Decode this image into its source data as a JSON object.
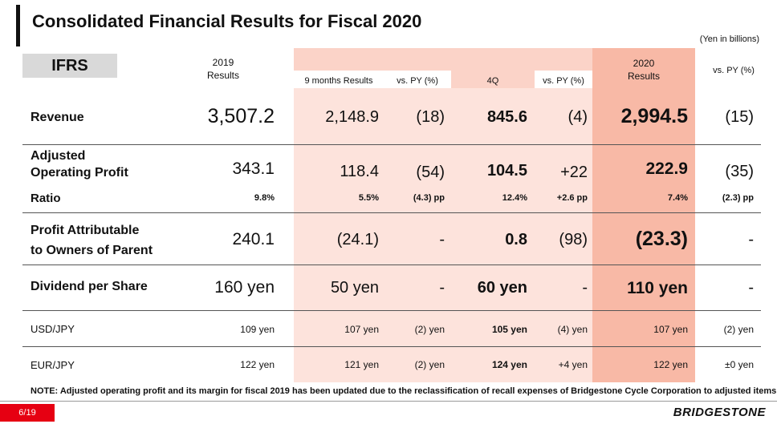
{
  "page": {
    "title": "Consolidated Financial Results for Fiscal 2020",
    "unit_note": "(Yen in billions)",
    "ifrs_label": "IFRS",
    "note": "NOTE: Adjusted operating profit and its margin for fiscal 2019 has been updated due to the reclassification of recall expenses of Bridgestone Cycle Corporation to adjusted items.",
    "page_number": "6/19",
    "logo_text": "BRIDGESTONE"
  },
  "headers": {
    "fy2019_line1": "2019",
    "fy2019_line2": "Results",
    "nine_months": "9 months Results",
    "vs_py_9m": "vs. PY (%)",
    "q4": "4Q",
    "vs_py_4q": "vs. PY (%)",
    "fy2020_line1": "2020",
    "fy2020_line2": "Results",
    "vs_py_fy": "vs. PY (%)"
  },
  "rows": {
    "revenue": {
      "label": "Revenue",
      "fy2019": "3,507.2",
      "m9": "2,148.9",
      "m9_vs": "(18)",
      "q4": "845.6",
      "q4_vs": "(4)",
      "fy2020": "2,994.5",
      "fy_vs": "(15)"
    },
    "aop": {
      "label_line1": "Adjusted",
      "label_line2": "Operating Profit",
      "fy2019": "343.1",
      "m9": "118.4",
      "m9_vs": "(54)",
      "q4": "104.5",
      "q4_vs": "+22",
      "fy2020": "222.9",
      "fy_vs": "(35)"
    },
    "ratio": {
      "label": "Ratio",
      "fy2019": "9.8%",
      "m9": "5.5%",
      "m9_vs": "(4.3) pp",
      "q4": "12.4%",
      "q4_vs": "+2.6 pp",
      "fy2020": "7.4%",
      "fy_vs": "(2.3) pp"
    },
    "profit": {
      "label_line1": "Profit Attributable",
      "label_line2": "to Owners of Parent",
      "fy2019": "240.1",
      "m9": "(24.1)",
      "m9_vs": "-",
      "q4": "0.8",
      "q4_vs": "(98)",
      "fy2020": "(23.3)",
      "fy_vs": "-"
    },
    "dividend": {
      "label": "Dividend per Share",
      "fy2019": "160 yen",
      "m9": "50 yen",
      "m9_vs": "-",
      "q4": "60 yen",
      "q4_vs": "-",
      "fy2020": "110 yen",
      "fy_vs": "-"
    },
    "usd": {
      "label": "USD/JPY",
      "fy2019": "109 yen",
      "m9": "107 yen",
      "m9_vs": "(2) yen",
      "q4": "105 yen",
      "q4_vs": "(4) yen",
      "fy2020": "107 yen",
      "fy_vs": "(2) yen"
    },
    "eur": {
      "label": "EUR/JPY",
      "fy2019": "122 yen",
      "m9": "121 yen",
      "m9_vs": "(2) yen",
      "q4": "124 yen",
      "q4_vs": "+4 yen",
      "fy2020": "122 yen",
      "fy_vs": "±0 yen"
    }
  },
  "colors": {
    "band_light": "#fde3dc",
    "band_mid": "#fbd3c8",
    "band_dark": "#f8b9a6",
    "brand_red": "#e60012"
  }
}
